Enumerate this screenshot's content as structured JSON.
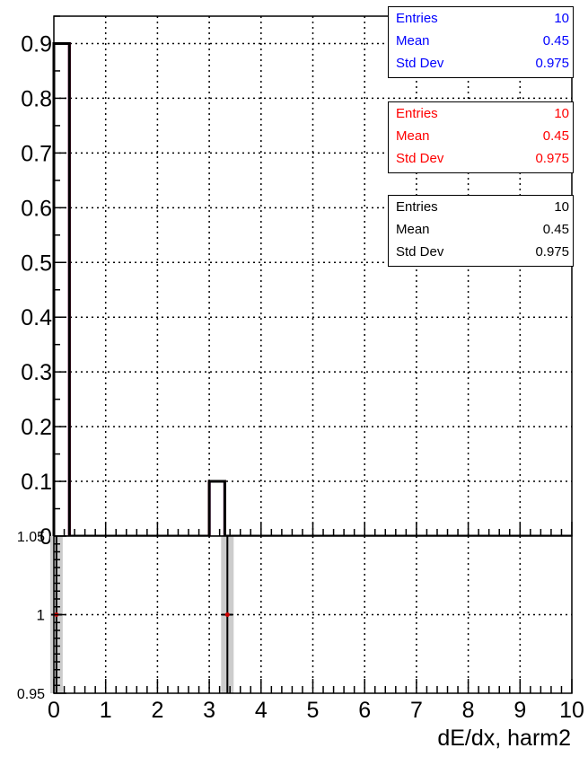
{
  "chart_data": [
    {
      "type": "bar",
      "panel": "upper",
      "title": "",
      "xlabel": "dE/dx, harm2",
      "ylabel": "",
      "xlim": [
        0,
        10
      ],
      "ylim": [
        0,
        0.95
      ],
      "grid": true,
      "y_ticks": [
        "0",
        "0.1",
        "0.2",
        "0.3",
        "0.4",
        "0.5",
        "0.6",
        "0.7",
        "0.8",
        "0.9"
      ],
      "series": [
        {
          "color": "#0000ff",
          "bins": [
            {
              "x0": 0.0,
              "x1": 0.3,
              "value": 0.9
            },
            {
              "x0": 3.0,
              "x1": 3.3,
              "value": 0.1
            }
          ]
        },
        {
          "color": "#ff0000",
          "bins": [
            {
              "x0": 0.0,
              "x1": 0.3,
              "value": 0.9
            },
            {
              "x0": 3.0,
              "x1": 3.3,
              "value": 0.1
            }
          ]
        },
        {
          "color": "#000000",
          "bins": [
            {
              "x0": 0.0,
              "x1": 0.3,
              "value": 0.9
            },
            {
              "x0": 3.0,
              "x1": 3.3,
              "value": 0.1
            }
          ]
        }
      ]
    },
    {
      "type": "scatter",
      "panel": "lower-ratio",
      "xlim": [
        0,
        10
      ],
      "ylim": [
        0.95,
        1.05
      ],
      "grid": true,
      "y_ticks": [
        "0.95",
        "1",
        "1.05"
      ],
      "x_ticks": [
        "0",
        "1",
        "2",
        "3",
        "4",
        "5",
        "6",
        "7",
        "8",
        "9",
        "10"
      ],
      "points": [
        {
          "x": 0.05,
          "y": 1.0
        },
        {
          "x": 3.35,
          "y": 1.0
        }
      ],
      "error_band_color": "#cccccc",
      "marker_color": "#cc0000"
    }
  ],
  "stats_boxes": [
    {
      "color": "#0000ff",
      "rows": [
        {
          "label": "Entries",
          "value": "10"
        },
        {
          "label": "Mean",
          "value": "0.45"
        },
        {
          "label": "Std Dev",
          "value": "0.975"
        }
      ]
    },
    {
      "color": "#ff0000",
      "rows": [
        {
          "label": "Entries",
          "value": "10"
        },
        {
          "label": "Mean",
          "value": "0.45"
        },
        {
          "label": "Std Dev",
          "value": "0.975"
        }
      ]
    },
    {
      "color": "#000000",
      "rows": [
        {
          "label": "Entries",
          "value": "10"
        },
        {
          "label": "Mean",
          "value": "0.45"
        },
        {
          "label": "Std Dev",
          "value": "0.975"
        }
      ]
    }
  ]
}
